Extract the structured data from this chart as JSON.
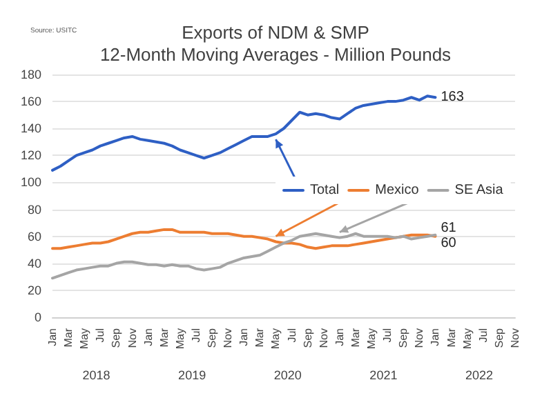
{
  "chart_data": {
    "type": "line",
    "title": "Exports of NDM & SMP",
    "subtitle": "12-Month Moving Averages - Million Pounds",
    "annotations": [
      "Source: USITC",
      "2018",
      "2019",
      "2020",
      "2021",
      "2022"
    ],
    "categories": [
      "Jan",
      null,
      "Mar",
      null,
      "May",
      null,
      "Jul",
      null,
      "Sep",
      null,
      "Nov",
      null,
      "Jan",
      null,
      "Mar",
      null,
      "May",
      null,
      "Jul",
      null,
      "Sep",
      null,
      "Nov",
      null,
      "Jan",
      null,
      "Mar",
      null,
      "May",
      null,
      "Jul",
      null,
      "Sep",
      null,
      "Nov",
      null,
      "Jan",
      null,
      "Mar",
      null,
      "May",
      null,
      "Jul",
      null,
      "Sep",
      null,
      "Nov",
      null,
      "Jan",
      null,
      "Mar",
      null,
      "May",
      null,
      "Jul",
      null,
      "Sep",
      null,
      "Nov"
    ],
    "series": [
      {
        "name": "Total",
        "color": "#2e5fc4",
        "values": [
          109,
          112,
          116,
          120,
          122,
          124,
          127,
          129,
          131,
          133,
          134,
          132,
          131,
          130,
          129,
          127,
          124,
          122,
          120,
          118,
          120,
          122,
          125,
          128,
          131,
          134,
          134,
          134,
          136,
          140,
          146,
          152,
          150,
          151,
          150,
          148,
          147,
          151,
          155,
          157,
          158,
          159,
          160,
          160,
          161,
          163,
          161,
          164,
          163,
          null,
          null,
          null,
          null,
          null,
          null,
          null,
          null,
          null,
          null
        ],
        "value_labels": [
          null,
          null,
          null,
          null,
          null,
          null,
          null,
          null,
          null,
          null,
          null,
          null,
          null,
          null,
          null,
          null,
          null,
          null,
          null,
          null,
          null,
          null,
          null,
          null,
          null,
          null,
          null,
          null,
          null,
          null,
          null,
          null,
          null,
          null,
          null,
          null,
          null,
          null,
          null,
          null,
          null,
          null,
          null,
          null,
          null,
          null,
          null,
          null,
          "163",
          null,
          null,
          null,
          null,
          null,
          null,
          null,
          null,
          null,
          null
        ]
      },
      {
        "name": "Mexico",
        "color": "#ed7d31",
        "values": [
          51,
          51,
          52,
          53,
          54,
          55,
          55,
          56,
          58,
          60,
          62,
          63,
          63,
          64,
          65,
          65,
          63,
          63,
          63,
          63,
          62,
          62,
          62,
          61,
          60,
          60,
          59,
          58,
          56,
          55,
          55,
          54,
          52,
          51,
          52,
          53,
          53,
          53,
          54,
          55,
          56,
          57,
          58,
          59,
          60,
          61,
          61,
          61,
          60,
          null,
          null,
          null,
          null,
          null,
          null,
          null,
          null,
          null,
          null
        ],
        "value_labels": [
          null,
          null,
          null,
          null,
          null,
          null,
          null,
          null,
          null,
          null,
          null,
          null,
          null,
          null,
          null,
          null,
          null,
          null,
          null,
          null,
          null,
          null,
          null,
          null,
          null,
          null,
          null,
          null,
          null,
          null,
          null,
          null,
          null,
          null,
          null,
          null,
          null,
          null,
          null,
          null,
          null,
          null,
          null,
          null,
          null,
          null,
          null,
          null,
          "60",
          null,
          null,
          null,
          null,
          null,
          null,
          null,
          null,
          null,
          null
        ]
      },
      {
        "name": "SE Asia",
        "color": "#a5a5a5",
        "values": [
          29,
          31,
          33,
          35,
          36,
          37,
          38,
          38,
          40,
          41,
          41,
          40,
          39,
          39,
          38,
          39,
          38,
          38,
          36,
          35,
          36,
          37,
          40,
          42,
          44,
          45,
          46,
          49,
          52,
          55,
          57,
          60,
          61,
          62,
          61,
          60,
          59,
          60,
          62,
          60,
          60,
          60,
          60,
          59,
          60,
          58,
          59,
          60,
          61,
          null,
          null,
          null,
          null,
          null,
          null,
          null,
          null,
          null,
          null
        ],
        "value_labels": [
          null,
          null,
          null,
          null,
          null,
          null,
          null,
          null,
          null,
          null,
          null,
          null,
          null,
          null,
          null,
          null,
          null,
          null,
          null,
          null,
          null,
          null,
          null,
          null,
          null,
          null,
          null,
          null,
          null,
          null,
          null,
          null,
          null,
          null,
          null,
          null,
          null,
          null,
          null,
          null,
          null,
          null,
          null,
          null,
          null,
          null,
          null,
          null,
          "61",
          null,
          null,
          null,
          null,
          null,
          null,
          null,
          null,
          null,
          null
        ]
      }
    ],
    "ylim": [
      0,
      180
    ],
    "yticks": [
      0,
      20,
      40,
      60,
      80,
      100,
      120,
      140,
      160,
      180
    ],
    "grid": "y",
    "legend": "center",
    "marker": "none",
    "line_style": "solid"
  }
}
